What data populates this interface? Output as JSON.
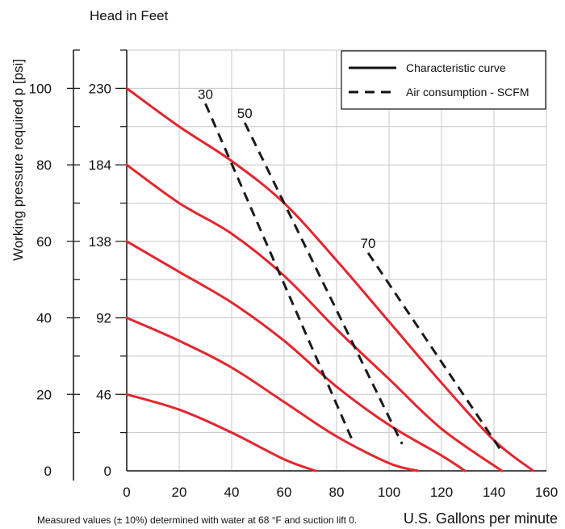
{
  "chart_data": {
    "type": "line",
    "top_label": "Head in Feet",
    "ylabel": "Working pressure required p [psi]",
    "xlabel": "U.S. Gallons per minute",
    "footnote": "Measured values (± 10%) determined with water at 68 °F and suction lift 0.",
    "xlim": [
      0,
      160
    ],
    "ylim": [
      0,
      110
    ],
    "x_ticks": [
      0,
      20,
      40,
      60,
      80,
      100,
      120,
      140,
      160
    ],
    "y_ticks_psi": [
      {
        "value": 0,
        "label": "0"
      },
      {
        "value": 20,
        "label": "20"
      },
      {
        "value": 40,
        "label": "40"
      },
      {
        "value": 60,
        "label": "60"
      },
      {
        "value": 80,
        "label": "80"
      },
      {
        "value": 100,
        "label": "100"
      }
    ],
    "y_ticks_head": [
      {
        "value": 0,
        "label": "0"
      },
      {
        "value": 20,
        "label": "46"
      },
      {
        "value": 40,
        "label": "92"
      },
      {
        "value": 60,
        "label": "138"
      },
      {
        "value": 80,
        "label": "184"
      },
      {
        "value": 100,
        "label": "230"
      }
    ],
    "grid": true,
    "legend_position": "top-right",
    "legend": [
      {
        "label": "Characteristic curve",
        "style": "solid"
      },
      {
        "label": "Air consumption - SCFM",
        "style": "dashed"
      }
    ],
    "characteristic_curves": [
      {
        "x": [
          0,
          20,
          40,
          60,
          80,
          100,
          120,
          140,
          155
        ],
        "y": [
          100,
          90,
          81,
          70,
          55,
          39,
          23,
          8,
          0
        ]
      },
      {
        "x": [
          0,
          20,
          40,
          60,
          80,
          100,
          120,
          143
        ],
        "y": [
          80,
          70,
          62,
          51,
          37,
          24,
          11,
          0
        ]
      },
      {
        "x": [
          0,
          20,
          40,
          60,
          80,
          100,
          120,
          129
        ],
        "y": [
          60,
          52,
          44,
          34,
          22,
          12,
          4,
          0
        ]
      },
      {
        "x": [
          0,
          20,
          40,
          60,
          80,
          100,
          111
        ],
        "y": [
          40,
          34,
          27,
          18,
          9,
          2,
          0
        ]
      },
      {
        "x": [
          0,
          20,
          40,
          60,
          72
        ],
        "y": [
          20,
          16,
          10,
          3,
          0
        ]
      }
    ],
    "air_consumption_lines": [
      {
        "label": "30",
        "x": [
          30,
          86
        ],
        "y": [
          96,
          8
        ]
      },
      {
        "label": "50",
        "x": [
          45,
          105
        ],
        "y": [
          91,
          7
        ]
      },
      {
        "label": "70",
        "x": [
          92,
          143
        ],
        "y": [
          57,
          5
        ]
      }
    ]
  }
}
